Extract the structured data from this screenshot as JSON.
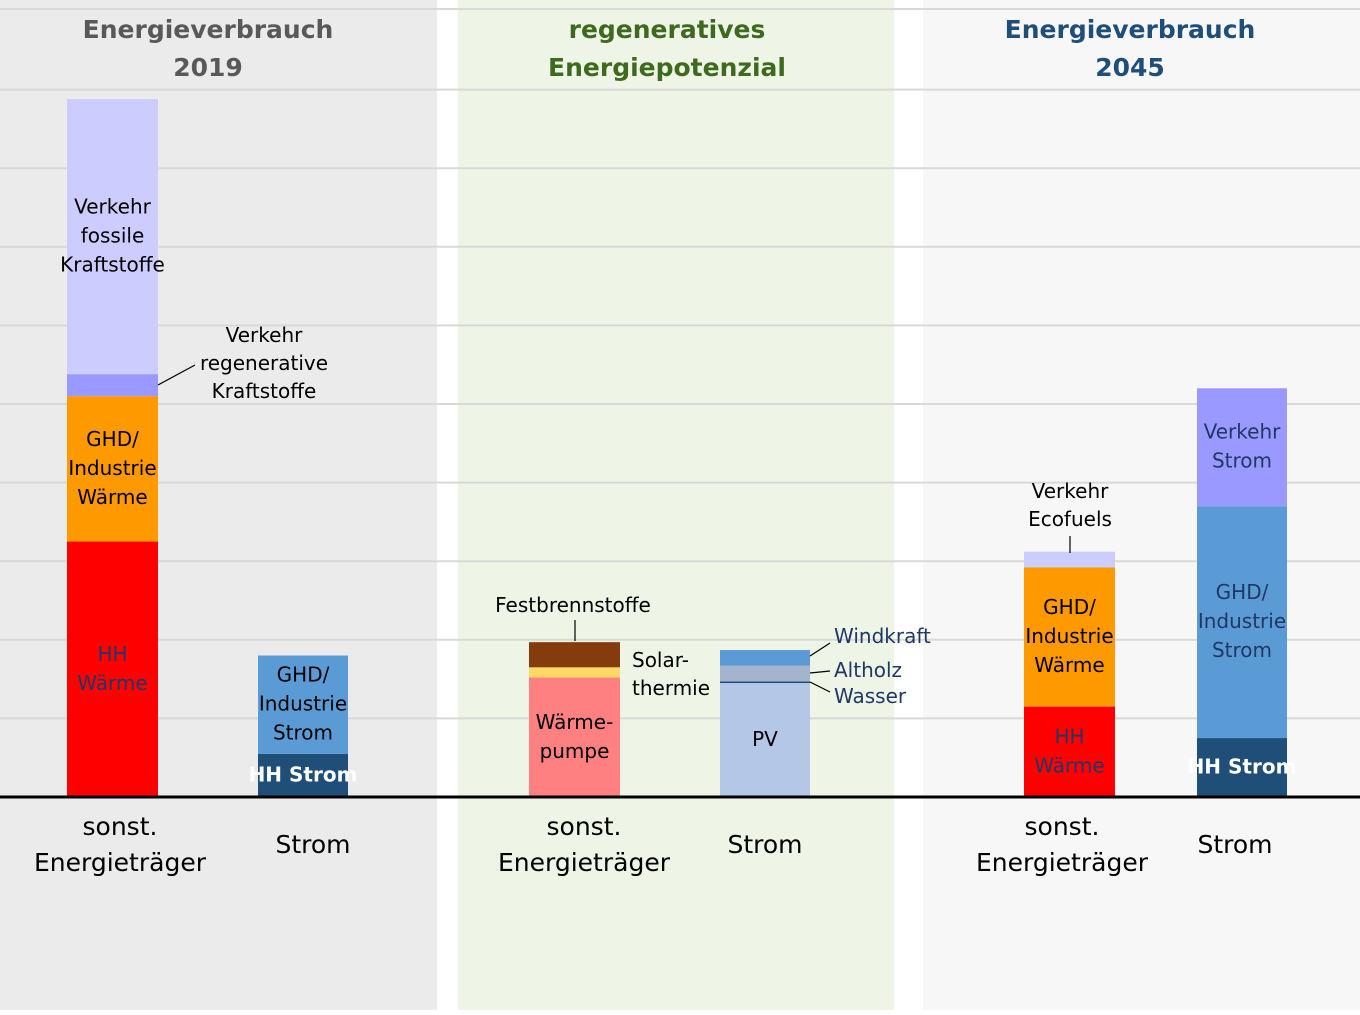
{
  "colors": {
    "panel_bg": [
      "#ebebeb",
      "#eef4e6",
      "#f7f7f7"
    ],
    "title": [
      "#595959",
      "#3e6a1f",
      "#1f4e79"
    ],
    "grid": "#d9d9d9",
    "axis": "#000000",
    "label_dark": "#000000",
    "label_blue": "#1f3864",
    "label_white": "#ffffff"
  },
  "chart_data": {
    "type": "bar",
    "stacked": true,
    "unit_note": "",
    "y_axis": {
      "range": [
        0,
        9
      ],
      "grid": true,
      "tick_labels_visible": false
    },
    "groups": [
      {
        "title": [
          "Energieverbrauch",
          "2019"
        ],
        "bars": [
          {
            "category_label": [
              "sonst.",
              "Energieträger"
            ],
            "segments": [
              {
                "label": [
                  "HH",
                  "Wärme"
                ],
                "value": 3.25,
                "color": "#ff0000",
                "label_color": "#1f3864"
              },
              {
                "label": [
                  "GHD/",
                  "Industrie",
                  "Wärme"
                ],
                "value": 1.85,
                "color": "#ff9900",
                "label_color": "#000000"
              },
              {
                "label": [
                  "Verkehr",
                  "regenerative",
                  "Kraftstoffe"
                ],
                "value": 0.28,
                "color": "#9999ff",
                "label_color": "#000000",
                "callout": true
              },
              {
                "label": [
                  "Verkehr",
                  "fossile",
                  "Kraftstoffe"
                ],
                "value": 3.5,
                "color": "#ccccff",
                "label_color": "#000000"
              }
            ]
          },
          {
            "category_label": [
              "Strom"
            ],
            "segments": [
              {
                "label": [
                  "HH Strom"
                ],
                "value": 0.55,
                "color": "#1f4e79",
                "label_color": "#ffffff"
              },
              {
                "label": [
                  "GHD/",
                  "Industrie",
                  "Strom"
                ],
                "value": 1.25,
                "color": "#5b9bd5",
                "label_color": "#000000"
              }
            ]
          }
        ]
      },
      {
        "title": [
          "regeneratives",
          "Energiepotenzial"
        ],
        "bars": [
          {
            "category_label": [
              "sonst.",
              "Energieträger"
            ],
            "segments": [
              {
                "label": [
                  "Wärme-",
                  "pumpe"
                ],
                "value": 1.52,
                "color": "#ff8080",
                "label_color": "#000000"
              },
              {
                "label": [
                  "Solar-",
                  "thermie"
                ],
                "value": 0.13,
                "color": "#ffd966",
                "label_color": "#000000",
                "callout": true
              },
              {
                "label": [
                  "Festbrennstoffe"
                ],
                "value": 0.32,
                "color": "#843c0c",
                "label_color": "#000000",
                "callout": true
              }
            ]
          },
          {
            "category_label": [
              "Strom"
            ],
            "segments": [
              {
                "label": [
                  "PV"
                ],
                "value": 1.45,
                "color": "#b4c7e7",
                "label_color": "#000000"
              },
              {
                "label": [
                  "Wasser"
                ],
                "value": 0.02,
                "color": "#1f4e79",
                "label_color": "#1f3864",
                "callout": true
              },
              {
                "label": [
                  "Altholz"
                ],
                "value": 0.2,
                "color": "#a5b4cd",
                "label_color": "#1f3864",
                "callout": true
              },
              {
                "label": [
                  "Windkraft"
                ],
                "value": 0.2,
                "color": "#5b9bd5",
                "label_color": "#1f3864",
                "callout": true
              }
            ]
          }
        ]
      },
      {
        "title": [
          "Energieverbrauch",
          "2045"
        ],
        "bars": [
          {
            "category_label": [
              "sonst.",
              "Energieträger"
            ],
            "segments": [
              {
                "label": [
                  "HH",
                  "Wärme"
                ],
                "value": 1.15,
                "color": "#ff0000",
                "label_color": "#1f3864"
              },
              {
                "label": [
                  "GHD/",
                  "Industrie",
                  "Wärme"
                ],
                "value": 1.77,
                "color": "#ff9900",
                "label_color": "#000000"
              },
              {
                "label": [
                  "Verkehr",
                  "Ecofuels"
                ],
                "value": 0.2,
                "color": "#ccccff",
                "label_color": "#000000",
                "callout": true
              }
            ]
          },
          {
            "category_label": [
              "Strom"
            ],
            "segments": [
              {
                "label": [
                  "HH Strom"
                ],
                "value": 0.75,
                "color": "#1f4e79",
                "label_color": "#ffffff"
              },
              {
                "label": [
                  "GHD/",
                  "Industrie",
                  "Strom"
                ],
                "value": 2.95,
                "color": "#5b9bd5",
                "label_color": "#1f3864"
              },
              {
                "label": [
                  "Verkehr",
                  "Strom"
                ],
                "value": 1.5,
                "color": "#9999ff",
                "label_color": "#1f3864"
              }
            ]
          }
        ]
      }
    ]
  }
}
